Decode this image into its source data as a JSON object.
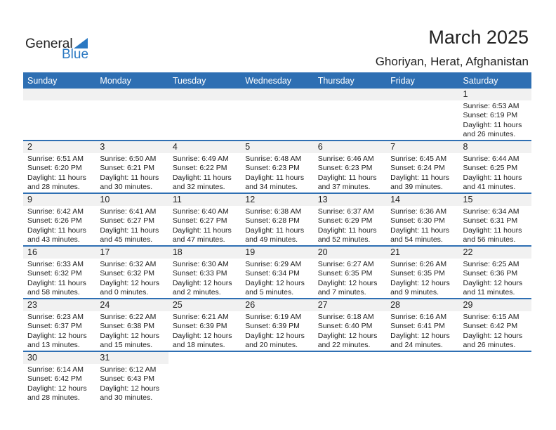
{
  "logo": {
    "line1": "General",
    "line2": "Blue"
  },
  "header": {
    "title": "March 2025",
    "location": "Ghoriyan, Herat, Afghanistan"
  },
  "colors": {
    "accent": "#2e6fb3",
    "date_band": "#f1f1f1"
  },
  "weekdays": [
    "Sunday",
    "Monday",
    "Tuesday",
    "Wednesday",
    "Thursday",
    "Friday",
    "Saturday"
  ],
  "weeks": [
    [
      null,
      null,
      null,
      null,
      null,
      null,
      {
        "day": "1",
        "sunrise": "Sunrise: 6:53 AM",
        "sunset": "Sunset: 6:19 PM",
        "daylight": "Daylight: 11 hours",
        "minutes": "and 26 minutes."
      }
    ],
    [
      {
        "day": "2",
        "sunrise": "Sunrise: 6:51 AM",
        "sunset": "Sunset: 6:20 PM",
        "daylight": "Daylight: 11 hours",
        "minutes": "and 28 minutes."
      },
      {
        "day": "3",
        "sunrise": "Sunrise: 6:50 AM",
        "sunset": "Sunset: 6:21 PM",
        "daylight": "Daylight: 11 hours",
        "minutes": "and 30 minutes."
      },
      {
        "day": "4",
        "sunrise": "Sunrise: 6:49 AM",
        "sunset": "Sunset: 6:22 PM",
        "daylight": "Daylight: 11 hours",
        "minutes": "and 32 minutes."
      },
      {
        "day": "5",
        "sunrise": "Sunrise: 6:48 AM",
        "sunset": "Sunset: 6:23 PM",
        "daylight": "Daylight: 11 hours",
        "minutes": "and 34 minutes."
      },
      {
        "day": "6",
        "sunrise": "Sunrise: 6:46 AM",
        "sunset": "Sunset: 6:23 PM",
        "daylight": "Daylight: 11 hours",
        "minutes": "and 37 minutes."
      },
      {
        "day": "7",
        "sunrise": "Sunrise: 6:45 AM",
        "sunset": "Sunset: 6:24 PM",
        "daylight": "Daylight: 11 hours",
        "minutes": "and 39 minutes."
      },
      {
        "day": "8",
        "sunrise": "Sunrise: 6:44 AM",
        "sunset": "Sunset: 6:25 PM",
        "daylight": "Daylight: 11 hours",
        "minutes": "and 41 minutes."
      }
    ],
    [
      {
        "day": "9",
        "sunrise": "Sunrise: 6:42 AM",
        "sunset": "Sunset: 6:26 PM",
        "daylight": "Daylight: 11 hours",
        "minutes": "and 43 minutes."
      },
      {
        "day": "10",
        "sunrise": "Sunrise: 6:41 AM",
        "sunset": "Sunset: 6:27 PM",
        "daylight": "Daylight: 11 hours",
        "minutes": "and 45 minutes."
      },
      {
        "day": "11",
        "sunrise": "Sunrise: 6:40 AM",
        "sunset": "Sunset: 6:27 PM",
        "daylight": "Daylight: 11 hours",
        "minutes": "and 47 minutes."
      },
      {
        "day": "12",
        "sunrise": "Sunrise: 6:38 AM",
        "sunset": "Sunset: 6:28 PM",
        "daylight": "Daylight: 11 hours",
        "minutes": "and 49 minutes."
      },
      {
        "day": "13",
        "sunrise": "Sunrise: 6:37 AM",
        "sunset": "Sunset: 6:29 PM",
        "daylight": "Daylight: 11 hours",
        "minutes": "and 52 minutes."
      },
      {
        "day": "14",
        "sunrise": "Sunrise: 6:36 AM",
        "sunset": "Sunset: 6:30 PM",
        "daylight": "Daylight: 11 hours",
        "minutes": "and 54 minutes."
      },
      {
        "day": "15",
        "sunrise": "Sunrise: 6:34 AM",
        "sunset": "Sunset: 6:31 PM",
        "daylight": "Daylight: 11 hours",
        "minutes": "and 56 minutes."
      }
    ],
    [
      {
        "day": "16",
        "sunrise": "Sunrise: 6:33 AM",
        "sunset": "Sunset: 6:32 PM",
        "daylight": "Daylight: 11 hours",
        "minutes": "and 58 minutes."
      },
      {
        "day": "17",
        "sunrise": "Sunrise: 6:32 AM",
        "sunset": "Sunset: 6:32 PM",
        "daylight": "Daylight: 12 hours",
        "minutes": "and 0 minutes."
      },
      {
        "day": "18",
        "sunrise": "Sunrise: 6:30 AM",
        "sunset": "Sunset: 6:33 PM",
        "daylight": "Daylight: 12 hours",
        "minutes": "and 2 minutes."
      },
      {
        "day": "19",
        "sunrise": "Sunrise: 6:29 AM",
        "sunset": "Sunset: 6:34 PM",
        "daylight": "Daylight: 12 hours",
        "minutes": "and 5 minutes."
      },
      {
        "day": "20",
        "sunrise": "Sunrise: 6:27 AM",
        "sunset": "Sunset: 6:35 PM",
        "daylight": "Daylight: 12 hours",
        "minutes": "and 7 minutes."
      },
      {
        "day": "21",
        "sunrise": "Sunrise: 6:26 AM",
        "sunset": "Sunset: 6:35 PM",
        "daylight": "Daylight: 12 hours",
        "minutes": "and 9 minutes."
      },
      {
        "day": "22",
        "sunrise": "Sunrise: 6:25 AM",
        "sunset": "Sunset: 6:36 PM",
        "daylight": "Daylight: 12 hours",
        "minutes": "and 11 minutes."
      }
    ],
    [
      {
        "day": "23",
        "sunrise": "Sunrise: 6:23 AM",
        "sunset": "Sunset: 6:37 PM",
        "daylight": "Daylight: 12 hours",
        "minutes": "and 13 minutes."
      },
      {
        "day": "24",
        "sunrise": "Sunrise: 6:22 AM",
        "sunset": "Sunset: 6:38 PM",
        "daylight": "Daylight: 12 hours",
        "minutes": "and 15 minutes."
      },
      {
        "day": "25",
        "sunrise": "Sunrise: 6:21 AM",
        "sunset": "Sunset: 6:39 PM",
        "daylight": "Daylight: 12 hours",
        "minutes": "and 18 minutes."
      },
      {
        "day": "26",
        "sunrise": "Sunrise: 6:19 AM",
        "sunset": "Sunset: 6:39 PM",
        "daylight": "Daylight: 12 hours",
        "minutes": "and 20 minutes."
      },
      {
        "day": "27",
        "sunrise": "Sunrise: 6:18 AM",
        "sunset": "Sunset: 6:40 PM",
        "daylight": "Daylight: 12 hours",
        "minutes": "and 22 minutes."
      },
      {
        "day": "28",
        "sunrise": "Sunrise: 6:16 AM",
        "sunset": "Sunset: 6:41 PM",
        "daylight": "Daylight: 12 hours",
        "minutes": "and 24 minutes."
      },
      {
        "day": "29",
        "sunrise": "Sunrise: 6:15 AM",
        "sunset": "Sunset: 6:42 PM",
        "daylight": "Daylight: 12 hours",
        "minutes": "and 26 minutes."
      }
    ],
    [
      {
        "day": "30",
        "sunrise": "Sunrise: 6:14 AM",
        "sunset": "Sunset: 6:42 PM",
        "daylight": "Daylight: 12 hours",
        "minutes": "and 28 minutes."
      },
      {
        "day": "31",
        "sunrise": "Sunrise: 6:12 AM",
        "sunset": "Sunset: 6:43 PM",
        "daylight": "Daylight: 12 hours",
        "minutes": "and 30 minutes."
      },
      null,
      null,
      null,
      null,
      null
    ]
  ]
}
